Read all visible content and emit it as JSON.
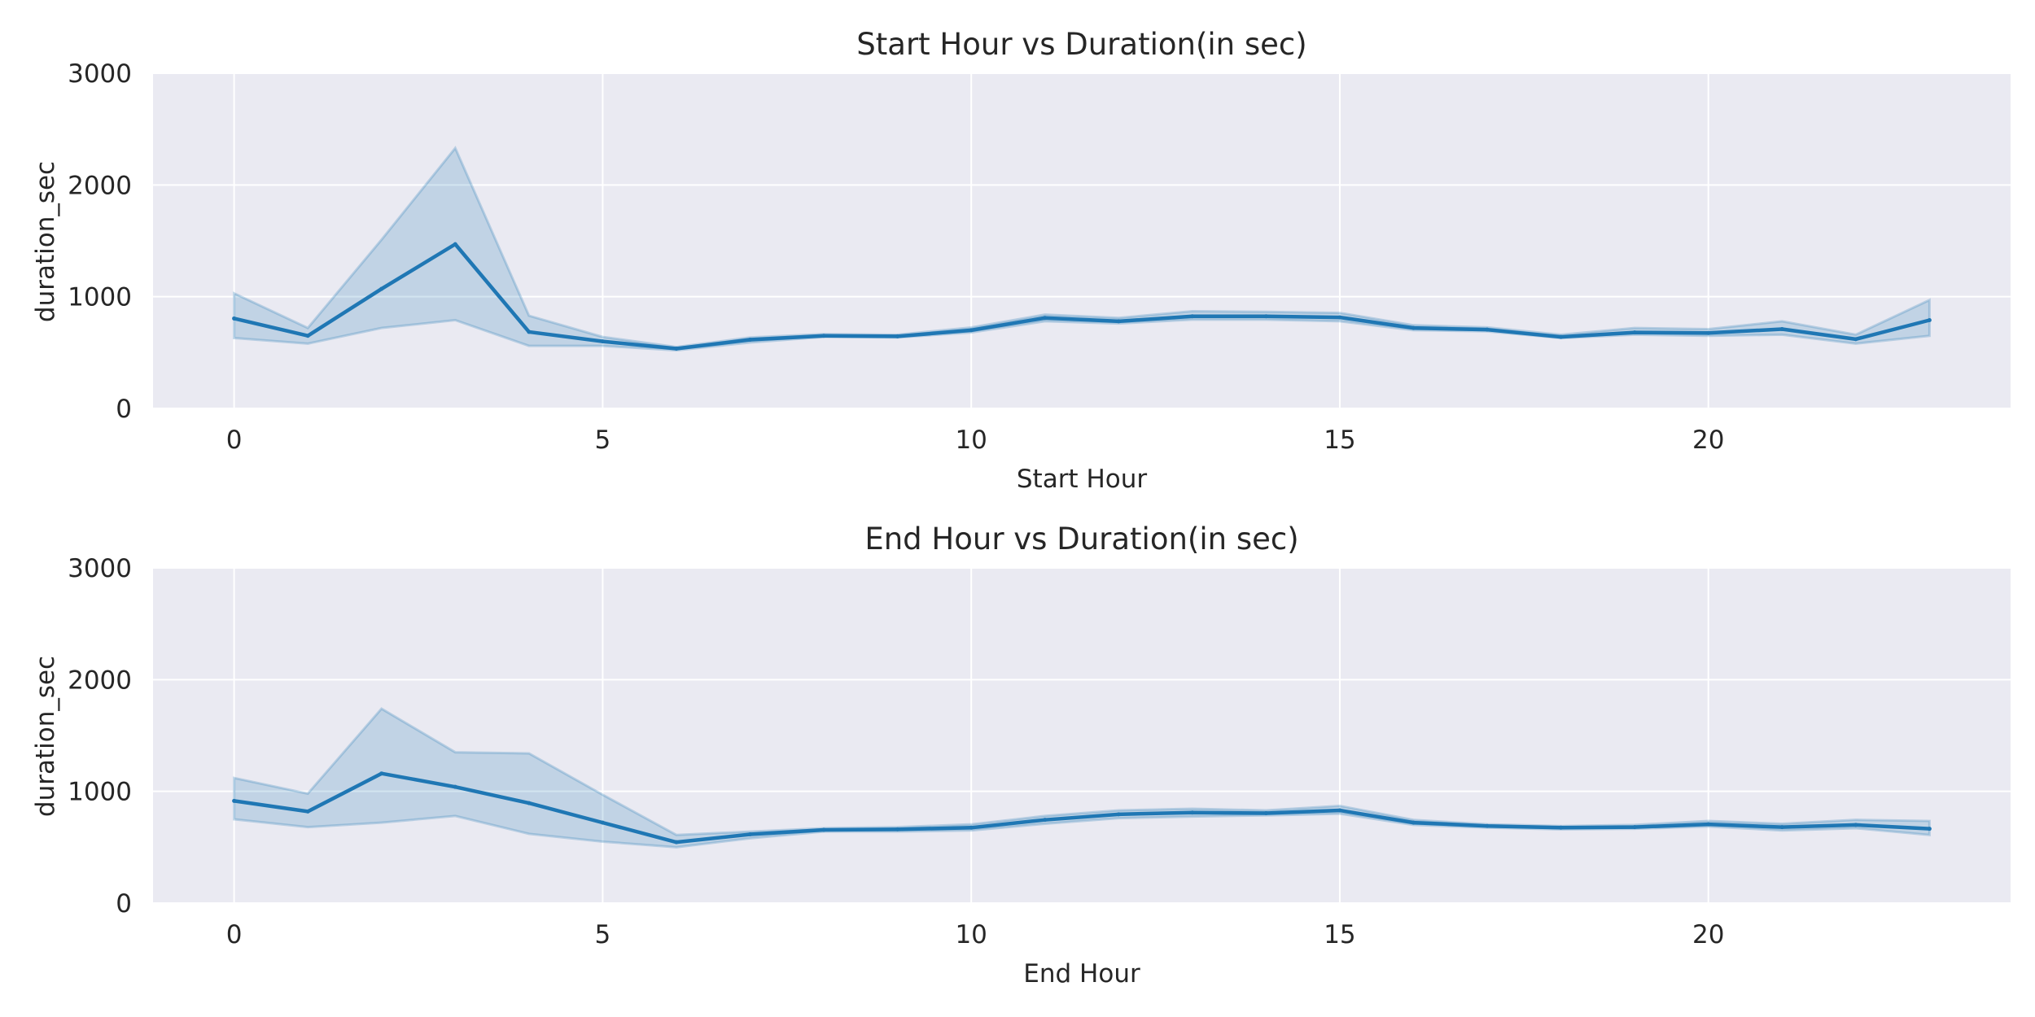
{
  "chart_data": [
    {
      "type": "line",
      "title": "Start Hour vs Duration(in sec)",
      "xlabel": "Start Hour",
      "ylabel": "duration_sec",
      "xlim": [
        -1.1,
        24.1
      ],
      "ylim": [
        0,
        3000
      ],
      "xticks": [
        0,
        5,
        10,
        15,
        20
      ],
      "yticks": [
        0,
        1000,
        2000,
        3000
      ],
      "grid": true,
      "legend": "none",
      "colors": {
        "line": "#1f77b4",
        "band": "#1f77b4",
        "plot_bg": "#eaeaf2",
        "grid": "#ffffff"
      },
      "x": [
        0,
        1,
        2,
        3,
        4,
        5,
        6,
        7,
        8,
        9,
        10,
        11,
        12,
        13,
        14,
        15,
        16,
        17,
        18,
        19,
        20,
        21,
        22,
        23
      ],
      "series": [
        {
          "values": [
            805,
            650,
            1070,
            1470,
            685,
            600,
            535,
            615,
            650,
            645,
            700,
            810,
            780,
            825,
            825,
            815,
            720,
            705,
            640,
            680,
            675,
            710,
            620,
            790
          ],
          "ci_low": [
            630,
            580,
            720,
            790,
            560,
            560,
            520,
            590,
            640,
            635,
            680,
            780,
            760,
            795,
            795,
            780,
            700,
            690,
            630,
            660,
            650,
            660,
            580,
            650
          ],
          "ci_high": [
            1030,
            720,
            1510,
            2330,
            830,
            640,
            550,
            635,
            665,
            660,
            725,
            840,
            810,
            870,
            865,
            855,
            745,
            725,
            660,
            720,
            710,
            780,
            660,
            970
          ]
        }
      ]
    },
    {
      "type": "line",
      "title": "End Hour vs Duration(in sec)",
      "xlabel": "End Hour",
      "ylabel": "duration_sec",
      "xlim": [
        -1.1,
        24.1
      ],
      "ylim": [
        0,
        3000
      ],
      "xticks": [
        0,
        5,
        10,
        15,
        20
      ],
      "yticks": [
        0,
        1000,
        2000,
        3000
      ],
      "grid": true,
      "legend": "none",
      "colors": {
        "line": "#1f77b4",
        "band": "#1f77b4",
        "plot_bg": "#eaeaf2",
        "grid": "#ffffff"
      },
      "x": [
        0,
        1,
        2,
        3,
        4,
        5,
        6,
        7,
        8,
        9,
        10,
        11,
        12,
        13,
        14,
        15,
        16,
        17,
        18,
        19,
        20,
        21,
        22,
        23
      ],
      "series": [
        {
          "values": [
            915,
            820,
            1160,
            1040,
            895,
            720,
            545,
            615,
            655,
            660,
            675,
            745,
            795,
            810,
            805,
            830,
            720,
            690,
            675,
            680,
            705,
            680,
            700,
            665
          ],
          "ci_low": [
            750,
            680,
            720,
            780,
            620,
            550,
            500,
            580,
            640,
            640,
            650,
            710,
            760,
            775,
            785,
            800,
            700,
            675,
            660,
            665,
            685,
            650,
            670,
            610
          ],
          "ci_high": [
            1120,
            980,
            1740,
            1350,
            1340,
            970,
            610,
            640,
            670,
            680,
            705,
            780,
            830,
            845,
            830,
            870,
            745,
            705,
            690,
            700,
            735,
            710,
            745,
            735
          ]
        }
      ]
    }
  ]
}
